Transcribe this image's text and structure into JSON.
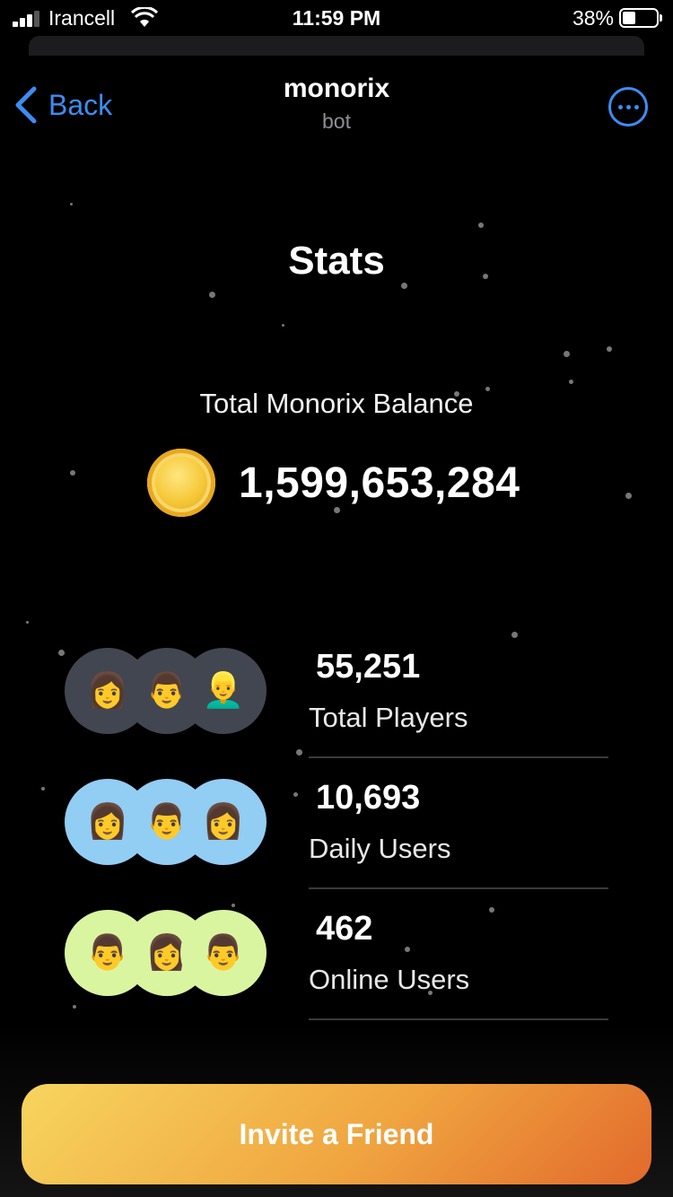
{
  "status_bar": {
    "carrier": "Irancell",
    "time": "11:59 PM",
    "battery_percent": "38%",
    "battery_level": 0.38,
    "signal_bars": 3
  },
  "nav": {
    "back_label": "Back",
    "title": "monorix",
    "subtitle": "bot"
  },
  "stats": {
    "title": "Stats",
    "balance_label": "Total Monorix Balance",
    "balance_value": "1,599,653,284",
    "rows": [
      {
        "value": "55,251",
        "label": "Total Players",
        "avatar_bg": "#424650",
        "avatars": [
          "👩",
          "👨",
          "👱‍♂️"
        ]
      },
      {
        "value": "10,693",
        "label": "Daily Users",
        "avatar_bg": "#92cdf4",
        "avatars": [
          "👩",
          "👨",
          "👩"
        ]
      },
      {
        "value": "462",
        "label": "Online Users",
        "avatar_bg": "#daf5a0",
        "avatars": [
          "👨",
          "👩",
          "👨"
        ]
      }
    ]
  },
  "invite_button": {
    "label": "Invite a Friend"
  },
  "colors": {
    "accent": "#3e8cf2",
    "button_start": "#f7d55e",
    "button_end": "#e26a2c"
  },
  "icons": {
    "back": "chevron-left-icon",
    "more": "ellipsis-circle-icon",
    "coin": "gold-coin-icon"
  }
}
